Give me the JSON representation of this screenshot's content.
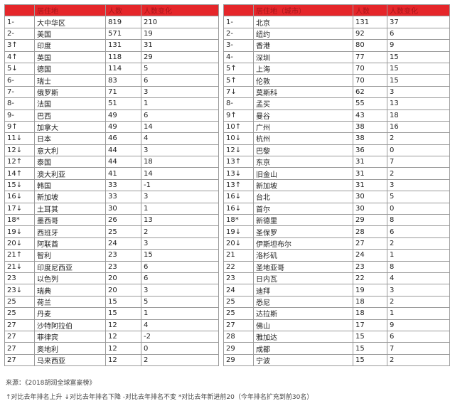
{
  "tables": [
    {
      "headers": [
        "居住地",
        "人数",
        "人数变化"
      ],
      "rows": [
        [
          "1-",
          "大中华区",
          819,
          210
        ],
        [
          "2-",
          "美国",
          571,
          19
        ],
        [
          "3↑",
          "印度",
          131,
          31
        ],
        [
          "4↑",
          "英国",
          118,
          29
        ],
        [
          "5↓",
          "德国",
          114,
          5
        ],
        [
          "6-",
          "瑞士",
          83,
          6
        ],
        [
          "7-",
          "俄罗斯",
          71,
          3
        ],
        [
          "8-",
          "法国",
          51,
          1
        ],
        [
          "9-",
          "巴西",
          49,
          6
        ],
        [
          "9↑",
          "加拿大",
          49,
          14
        ],
        [
          "11↓",
          "日本",
          46,
          4
        ],
        [
          "12↓",
          "意大利",
          44,
          3
        ],
        [
          "12↑",
          "泰国",
          44,
          18
        ],
        [
          "14↑",
          "澳大利亚",
          41,
          14
        ],
        [
          "15↓",
          "韩国",
          33,
          -1
        ],
        [
          "16↓",
          "新加坡",
          33,
          3
        ],
        [
          "17↓",
          "土耳其",
          30,
          1
        ],
        [
          "18*",
          "墨西哥",
          26,
          13
        ],
        [
          "19↓",
          "西班牙",
          25,
          2
        ],
        [
          "20↓",
          "阿联酋",
          24,
          3
        ],
        [
          "21↑",
          "智利",
          23,
          15
        ],
        [
          "21↓",
          "印度尼西亚",
          23,
          6
        ],
        [
          "23",
          "以色列",
          20,
          6
        ],
        [
          "23↓",
          "瑞典",
          20,
          3
        ],
        [
          "25",
          "荷兰",
          15,
          5
        ],
        [
          "25",
          "丹麦",
          15,
          1
        ],
        [
          "27",
          "沙特阿拉伯",
          12,
          4
        ],
        [
          "27",
          "菲律宾",
          12,
          -2
        ],
        [
          "27",
          "奥地利",
          12,
          0
        ],
        [
          "27",
          "马来西亚",
          12,
          2
        ]
      ]
    },
    {
      "headers": [
        "居住地（城市）",
        "人数",
        "人数变化"
      ],
      "rows": [
        [
          "1-",
          "北京",
          131,
          37
        ],
        [
          "2-",
          "纽约",
          92,
          6
        ],
        [
          "3-",
          "香港",
          80,
          9
        ],
        [
          "4-",
          "深圳",
          77,
          15
        ],
        [
          "5↑",
          "上海",
          70,
          15
        ],
        [
          "5↑",
          "伦敦",
          70,
          15
        ],
        [
          "7↓",
          "莫斯科",
          62,
          3
        ],
        [
          "8-",
          "孟买",
          55,
          13
        ],
        [
          "9↑",
          "曼谷",
          43,
          18
        ],
        [
          "10↑",
          "广州",
          38,
          16
        ],
        [
          "10↓",
          "杭州",
          38,
          2
        ],
        [
          "12↓",
          "巴黎",
          36,
          0
        ],
        [
          "13↑",
          "东京",
          31,
          7
        ],
        [
          "13↓",
          "旧金山",
          31,
          2
        ],
        [
          "13↑",
          "新加坡",
          31,
          3
        ],
        [
          "16↓",
          "台北",
          30,
          5
        ],
        [
          "16↓",
          "首尔",
          30,
          0
        ],
        [
          "18*",
          "新德里",
          29,
          8
        ],
        [
          "19↓",
          "圣保罗",
          28,
          6
        ],
        [
          "20↓",
          "伊斯坦布尔",
          27,
          2
        ],
        [
          "21",
          "洛杉矶",
          24,
          1
        ],
        [
          "22",
          "圣地亚哥",
          23,
          8
        ],
        [
          "23",
          "日内瓦",
          22,
          4
        ],
        [
          "24",
          "迪拜",
          19,
          3
        ],
        [
          "25",
          "悉尼",
          18,
          2
        ],
        [
          "25",
          "达拉斯",
          18,
          1
        ],
        [
          "27",
          "佛山",
          17,
          9
        ],
        [
          "28",
          "雅加达",
          15,
          6
        ],
        [
          "29",
          "成都",
          15,
          7
        ],
        [
          "29",
          "宁波",
          15,
          2
        ]
      ]
    }
  ],
  "footer": {
    "source": "来源：《2018胡润全球富豪榜》",
    "legend": "↑对比去年排名上升  ↓对比去年排名下降  -对比去年排名不变  *对比去年新进前20（今年排名扩充到前30名）"
  }
}
